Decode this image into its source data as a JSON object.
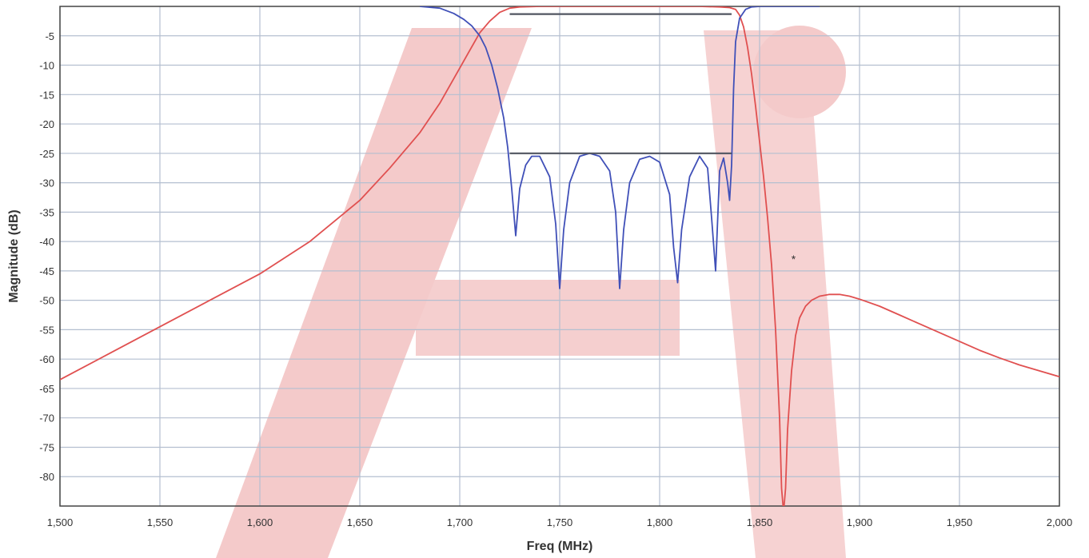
{
  "chart_data": {
    "type": "line",
    "xlabel": "Freq (MHz)",
    "ylabel": "Magnitude (dB)",
    "xlim": [
      1500,
      2000
    ],
    "ylim": [
      -85,
      0
    ],
    "grid": true,
    "x_ticks": [
      1500,
      1550,
      1600,
      1650,
      1700,
      1750,
      1800,
      1850,
      1900,
      1950,
      2000
    ],
    "x_tick_labels": [
      "1,500",
      "1,550",
      "1,600",
      "1,650",
      "1,700",
      "1,750",
      "1,800",
      "1,850",
      "1,900",
      "1,950",
      "2,000"
    ],
    "y_ticks": [
      -5,
      -10,
      -15,
      -20,
      -25,
      -30,
      -35,
      -40,
      -45,
      -50,
      -55,
      -60,
      -65,
      -70,
      -75,
      -80
    ],
    "y_tick_labels": [
      "-5",
      "-10",
      "-15",
      "-20",
      "-25",
      "-30",
      "-35",
      "-40",
      "-45",
      "-50",
      "-55",
      "-60",
      "-65",
      "-70",
      "-75",
      "-80"
    ],
    "annotation": "*",
    "annotation_at": [
      1867,
      -43
    ],
    "series": [
      {
        "color": "#e05050",
        "x": [
          1500,
          1525,
          1550,
          1575,
          1600,
          1625,
          1650,
          1665,
          1680,
          1690,
          1700,
          1705,
          1710,
          1715,
          1720,
          1725,
          1730,
          1740,
          1760,
          1780,
          1800,
          1820,
          1830,
          1835,
          1838,
          1840,
          1842,
          1844,
          1846,
          1848,
          1850,
          1852,
          1854,
          1856,
          1858,
          1860,
          1861,
          1862,
          1863,
          1864,
          1866,
          1868,
          1870,
          1873,
          1876,
          1880,
          1885,
          1890,
          1895,
          1900,
          1910,
          1920,
          1930,
          1940,
          1950,
          1960,
          1970,
          1980,
          1990,
          2000
        ],
        "y": [
          -63.5,
          -59,
          -54.5,
          -50,
          -45.5,
          -40,
          -33,
          -27.5,
          -21.5,
          -16.5,
          -10.5,
          -7.5,
          -4.5,
          -2.5,
          -1,
          -0.3,
          -0.1,
          0,
          0,
          0,
          0,
          0,
          -0.1,
          -0.2,
          -0.5,
          -1.5,
          -3.5,
          -7,
          -11.5,
          -17,
          -23,
          -29,
          -36,
          -44,
          -55,
          -70,
          -82,
          -86,
          -82,
          -72,
          -62,
          -56,
          -53,
          -51,
          -50,
          -49.3,
          -49,
          -49,
          -49.3,
          -49.8,
          -51,
          -52.5,
          -54,
          -55.5,
          -57,
          -58.5,
          -59.8,
          -61,
          -62,
          -63
        ]
      },
      {
        "color": "#4050b8",
        "x": [
          1680,
          1690,
          1697,
          1702,
          1706,
          1710,
          1713,
          1716,
          1719,
          1722,
          1724,
          1726,
          1728,
          1730,
          1733,
          1736,
          1740,
          1745,
          1748,
          1750,
          1752,
          1755,
          1760,
          1765,
          1770,
          1775,
          1778,
          1780,
          1782,
          1785,
          1790,
          1795,
          1800,
          1805,
          1807,
          1809,
          1811,
          1815,
          1820,
          1824,
          1826,
          1828,
          1830,
          1832,
          1834,
          1835,
          1836,
          1837,
          1838,
          1840,
          1843,
          1846,
          1850,
          1860,
          1880
        ],
        "y": [
          0,
          -0.3,
          -1.2,
          -2.2,
          -3.3,
          -5,
          -7,
          -10,
          -14,
          -19,
          -24,
          -31,
          -39,
          -31,
          -27,
          -25.5,
          -25.5,
          -29,
          -37,
          -48,
          -38,
          -30,
          -25.5,
          -25,
          -25.5,
          -28,
          -35,
          -48,
          -38,
          -30,
          -26,
          -25.5,
          -26.5,
          -32,
          -41,
          -47,
          -38,
          -29,
          -25.5,
          -27.5,
          -36,
          -45,
          -28,
          -25.8,
          -30,
          -33,
          -27,
          -14,
          -6,
          -2,
          -0.5,
          -0.1,
          0,
          0,
          0
        ]
      },
      {
        "color": "#505560",
        "x": [
          1725,
          1836
        ],
        "y": [
          -1.3,
          -1.3
        ]
      },
      {
        "color": "#505560",
        "x": [
          1725,
          1836
        ],
        "y": [
          -25,
          -25
        ]
      }
    ]
  }
}
